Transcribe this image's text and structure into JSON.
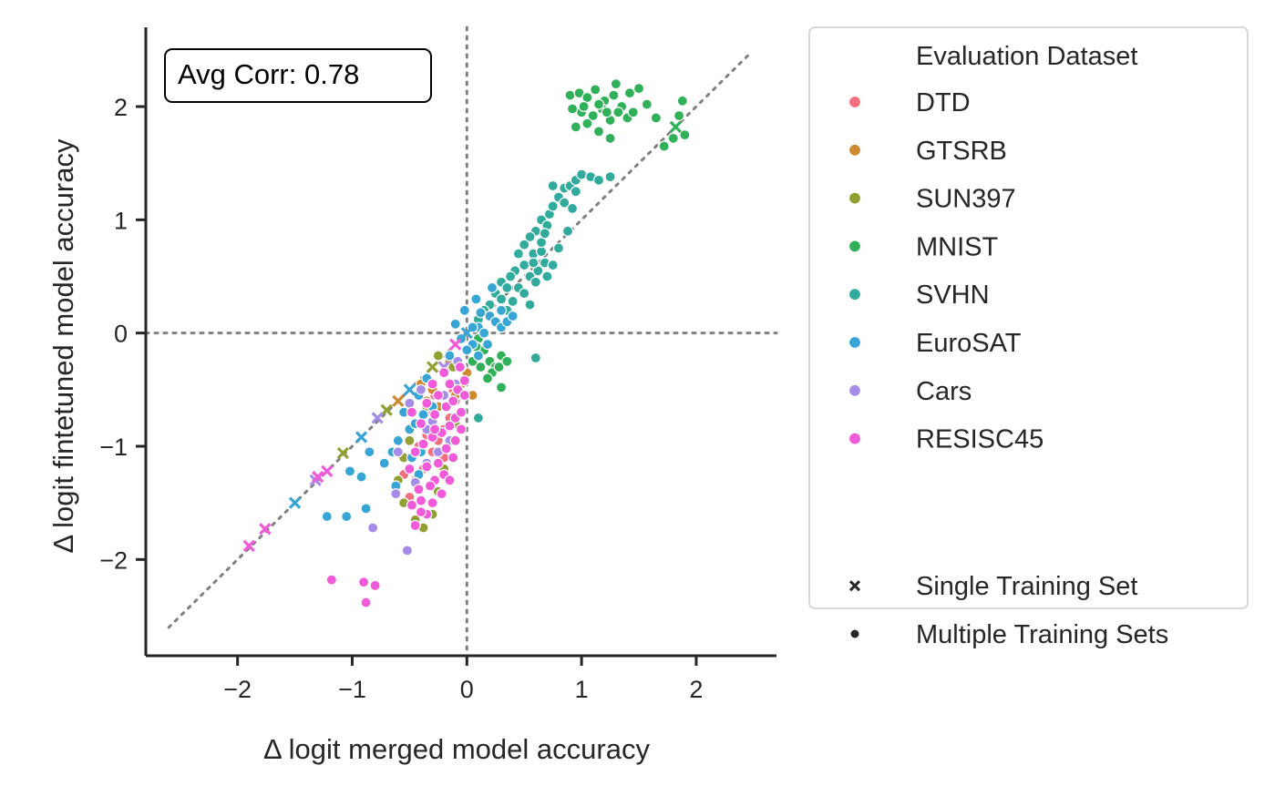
{
  "chart_data": {
    "type": "scatter",
    "xlabel": "Δ logit merged model accuracy",
    "ylabel": "Δ logit fintetuned model accuracy",
    "xlim": [
      -2.8,
      2.7
    ],
    "ylim": [
      -2.85,
      2.7
    ],
    "xticks": [
      -2,
      -1,
      0,
      1,
      2
    ],
    "yticks": [
      -2,
      -1,
      0,
      1,
      2
    ],
    "xtick_labels": [
      "−2",
      "−1",
      "0",
      "1",
      "2"
    ],
    "ytick_labels": [
      "−2",
      "−1",
      "0",
      "1",
      "2"
    ],
    "annotation": "Avg Corr: 0.78",
    "reference_lines": {
      "vertical_x": 0,
      "horizontal_y": 0,
      "diagonal": [
        [
          -2.6,
          -2.6
        ],
        [
          2.45,
          2.45
        ]
      ]
    },
    "legend": {
      "placement": "outside-right",
      "hue_title": "Evaluation Dataset",
      "style_title_spacer": "",
      "style_entries": [
        {
          "label": "Single Training Set",
          "marker": "x"
        },
        {
          "label": "Multiple Training Sets",
          "marker": "o"
        }
      ]
    },
    "series": [
      {
        "name": "DTD",
        "color": "#f0707f",
        "single": [
          [
            -0.15,
            -0.3
          ]
        ],
        "multiple": [
          [
            -0.45,
            -1.3
          ],
          [
            -0.38,
            -1.2
          ],
          [
            -0.3,
            -1.05
          ],
          [
            -0.25,
            -0.95
          ],
          [
            -0.2,
            -0.85
          ],
          [
            -0.35,
            -0.9
          ],
          [
            -0.15,
            -0.75
          ],
          [
            -0.1,
            -0.6
          ],
          [
            -0.3,
            -0.7
          ],
          [
            -0.42,
            -1.0
          ],
          [
            -0.55,
            -1.25
          ],
          [
            -0.5,
            -1.45
          ],
          [
            -0.2,
            -1.1
          ],
          [
            -0.12,
            -0.5
          ],
          [
            -0.28,
            -0.55
          ]
        ]
      },
      {
        "name": "GTSRB",
        "color": "#cd8a33",
        "single": [
          [
            -0.6,
            -0.6
          ]
        ],
        "multiple": [
          [
            -0.4,
            -0.45
          ],
          [
            -0.3,
            -0.5
          ],
          [
            -0.2,
            -0.35
          ],
          [
            -0.1,
            -0.55
          ],
          [
            -0.05,
            -0.45
          ],
          [
            0.05,
            -0.55
          ],
          [
            -0.25,
            -0.65
          ],
          [
            -0.35,
            -0.6
          ],
          [
            -0.15,
            -0.25
          ],
          [
            0.0,
            -0.35
          ]
        ]
      },
      {
        "name": "SUN397",
        "color": "#92a033",
        "single": [
          [
            -1.08,
            -1.06
          ],
          [
            -0.7,
            -0.68
          ],
          [
            -0.3,
            -0.3
          ]
        ],
        "multiple": [
          [
            -0.55,
            -1.5
          ],
          [
            -0.45,
            -1.65
          ],
          [
            -0.38,
            -1.72
          ],
          [
            -0.3,
            -1.6
          ],
          [
            -0.25,
            -1.4
          ],
          [
            -0.2,
            -1.2
          ],
          [
            -0.6,
            -1.3
          ],
          [
            -0.5,
            -0.95
          ],
          [
            -0.4,
            -0.8
          ],
          [
            -0.35,
            -0.65
          ],
          [
            -0.15,
            -0.95
          ],
          [
            -0.1,
            -0.8
          ],
          [
            -0.55,
            -1.1
          ],
          [
            -0.12,
            -0.3
          ],
          [
            -0.25,
            -0.2
          ]
        ]
      },
      {
        "name": "MNIST",
        "color": "#31b05a",
        "single": [
          [
            1.82,
            1.82
          ]
        ],
        "multiple": [
          [
            0.9,
            2.1
          ],
          [
            0.98,
            2.12
          ],
          [
            1.05,
            2.08
          ],
          [
            1.12,
            2.15
          ],
          [
            1.2,
            2.05
          ],
          [
            1.28,
            2.1
          ],
          [
            1.35,
            2.0
          ],
          [
            1.42,
            2.12
          ],
          [
            1.5,
            2.16
          ],
          [
            1.57,
            2.02
          ],
          [
            1.0,
            1.95
          ],
          [
            1.1,
            1.92
          ],
          [
            1.18,
            1.98
          ],
          [
            1.25,
            1.88
          ],
          [
            1.32,
            1.95
          ],
          [
            1.4,
            1.9
          ],
          [
            0.95,
            1.82
          ],
          [
            1.05,
            1.85
          ],
          [
            1.15,
            1.78
          ],
          [
            1.25,
            1.72
          ],
          [
            1.65,
            1.9
          ],
          [
            1.72,
            1.65
          ],
          [
            1.8,
            1.72
          ],
          [
            1.85,
            1.92
          ],
          [
            1.88,
            2.05
          ],
          [
            1.9,
            1.75
          ],
          [
            1.45,
            1.95
          ],
          [
            1.3,
            2.2
          ],
          [
            1.02,
            2.0
          ],
          [
            1.22,
            1.95
          ],
          [
            0.92,
            1.98
          ],
          [
            1.15,
            2.02
          ],
          [
            0.1,
            -0.05
          ],
          [
            0.15,
            -0.15
          ],
          [
            0.2,
            -0.25
          ],
          [
            0.25,
            -0.3
          ],
          [
            0.3,
            -0.2
          ],
          [
            0.12,
            -0.3
          ],
          [
            0.22,
            -0.35
          ],
          [
            0.3,
            -0.48
          ],
          [
            0.18,
            -0.4
          ],
          [
            0.28,
            -0.3
          ],
          [
            0.05,
            -0.25
          ],
          [
            0.35,
            -0.25
          ],
          [
            0.08,
            -0.12
          ]
        ]
      },
      {
        "name": "SVHN",
        "color": "#31ab9c",
        "single": [],
        "multiple": [
          [
            0.65,
            1.0
          ],
          [
            0.72,
            1.05
          ],
          [
            0.8,
            1.2
          ],
          [
            0.85,
            1.28
          ],
          [
            0.9,
            1.3
          ],
          [
            0.95,
            1.35
          ],
          [
            1.0,
            1.4
          ],
          [
            1.08,
            1.38
          ],
          [
            1.15,
            1.35
          ],
          [
            0.75,
            1.12
          ],
          [
            0.7,
            0.95
          ],
          [
            0.6,
            0.9
          ],
          [
            0.55,
            0.85
          ],
          [
            0.5,
            0.78
          ],
          [
            0.58,
            0.7
          ],
          [
            0.65,
            0.72
          ],
          [
            0.45,
            0.7
          ],
          [
            0.5,
            0.6
          ],
          [
            0.42,
            0.55
          ],
          [
            0.38,
            0.5
          ],
          [
            0.3,
            0.45
          ],
          [
            0.35,
            0.4
          ],
          [
            0.25,
            0.35
          ],
          [
            0.3,
            0.3
          ],
          [
            0.2,
            0.25
          ],
          [
            0.15,
            0.2
          ],
          [
            0.1,
            0.12
          ],
          [
            0.45,
            0.4
          ],
          [
            0.55,
            0.5
          ],
          [
            0.62,
            0.55
          ],
          [
            0.68,
            0.62
          ],
          [
            0.5,
            0.35
          ],
          [
            0.6,
            0.45
          ],
          [
            0.7,
            0.5
          ],
          [
            0.75,
            0.6
          ],
          [
            0.65,
            0.8
          ],
          [
            0.8,
            0.75
          ],
          [
            0.88,
            0.9
          ],
          [
            0.92,
            1.1
          ],
          [
            1.25,
            1.38
          ],
          [
            0.6,
            -0.22
          ],
          [
            0.1,
            -0.75
          ],
          [
            0.55,
            0.25
          ],
          [
            0.4,
            0.28
          ],
          [
            0.35,
            0.2
          ],
          [
            0.75,
            1.3
          ],
          [
            0.85,
            1.15
          ],
          [
            0.95,
            1.25
          ],
          [
            0.68,
            0.88
          ],
          [
            0.58,
            0.62
          ]
        ]
      },
      {
        "name": "EuroSAT",
        "color": "#38a6d4",
        "single": [
          [
            -1.5,
            -1.5
          ],
          [
            -0.92,
            -0.92
          ],
          [
            -0.5,
            -0.5
          ],
          [
            0.0,
            0.0
          ]
        ],
        "multiple": [
          [
            -1.22,
            -1.62
          ],
          [
            -1.05,
            -1.62
          ],
          [
            -0.88,
            -1.55
          ],
          [
            -0.92,
            -1.27
          ],
          [
            -0.72,
            -1.15
          ],
          [
            -0.65,
            -1.05
          ],
          [
            -0.6,
            -0.95
          ],
          [
            -0.5,
            -0.85
          ],
          [
            -0.45,
            -0.8
          ],
          [
            -0.38,
            -0.72
          ],
          [
            -0.3,
            -0.65
          ],
          [
            -0.22,
            -0.55
          ],
          [
            -0.12,
            -0.45
          ],
          [
            -0.05,
            -0.3
          ],
          [
            0.05,
            -0.1
          ],
          [
            0.1,
            0.05
          ],
          [
            0.2,
            0.15
          ],
          [
            0.3,
            0.2
          ],
          [
            0.25,
            0.1
          ],
          [
            0.15,
            0.0
          ],
          [
            0.0,
            -0.15
          ],
          [
            -0.08,
            -0.25
          ],
          [
            0.18,
            -0.1
          ],
          [
            0.1,
            -0.2
          ],
          [
            -0.15,
            -0.2
          ],
          [
            0.3,
            0.05
          ],
          [
            0.35,
            0.1
          ],
          [
            0.22,
            0.4
          ],
          [
            0.08,
            0.3
          ],
          [
            -0.1,
            0.08
          ],
          [
            -0.02,
            0.2
          ],
          [
            -0.35,
            -0.4
          ],
          [
            -0.42,
            -0.55
          ],
          [
            -0.55,
            -0.7
          ],
          [
            -0.48,
            -1.1
          ],
          [
            -0.42,
            -1.25
          ],
          [
            -1.02,
            -1.22
          ],
          [
            -0.85,
            -1.05
          ],
          [
            -0.62,
            -1.35
          ],
          [
            -0.4,
            -1.05
          ],
          [
            -0.3,
            -0.9
          ],
          [
            0.4,
            0.15
          ],
          [
            0.05,
            0.05
          ],
          [
            0.12,
            0.18
          ],
          [
            -0.05,
            -0.05
          ]
        ]
      },
      {
        "name": "Cars",
        "color": "#a48ce8",
        "single": [
          [
            -1.32,
            -1.3
          ],
          [
            -0.78,
            -0.75
          ],
          [
            -0.2,
            -0.3
          ]
        ],
        "multiple": [
          [
            -0.82,
            -1.72
          ],
          [
            -0.52,
            -1.92
          ],
          [
            -0.62,
            -1.42
          ],
          [
            -0.45,
            -1.32
          ],
          [
            -0.35,
            -1.15
          ],
          [
            -0.25,
            -1.05
          ],
          [
            -0.15,
            -0.95
          ],
          [
            -0.3,
            -0.78
          ],
          [
            -0.2,
            -0.55
          ],
          [
            -0.1,
            -0.45
          ],
          [
            -0.08,
            -0.25
          ],
          [
            -0.4,
            -0.5
          ],
          [
            -0.5,
            -0.62
          ],
          [
            -0.35,
            -0.85
          ],
          [
            -0.6,
            -1.05
          ]
        ]
      },
      {
        "name": "RESISC45",
        "color": "#f15ad8",
        "single": [
          [
            -1.9,
            -1.88
          ],
          [
            -1.76,
            -1.73
          ],
          [
            -1.3,
            -1.27
          ],
          [
            -1.22,
            -1.22
          ],
          [
            -0.1,
            -0.1
          ]
        ],
        "multiple": [
          [
            -1.18,
            -2.18
          ],
          [
            -0.9,
            -2.2
          ],
          [
            -0.8,
            -2.23
          ],
          [
            -0.88,
            -2.38
          ],
          [
            -0.48,
            -1.52
          ],
          [
            -0.4,
            -1.48
          ],
          [
            -0.35,
            -1.6
          ],
          [
            -0.3,
            -1.5
          ],
          [
            -0.42,
            -1.38
          ],
          [
            -0.28,
            -1.3
          ],
          [
            -0.2,
            -1.25
          ],
          [
            -0.35,
            -1.18
          ],
          [
            -0.5,
            -1.2
          ],
          [
            -0.45,
            -1.05
          ],
          [
            -0.38,
            -0.98
          ],
          [
            -0.3,
            -0.92
          ],
          [
            -0.22,
            -0.88
          ],
          [
            -0.15,
            -0.82
          ],
          [
            -0.1,
            -0.75
          ],
          [
            -0.05,
            -0.7
          ],
          [
            -0.18,
            -0.65
          ],
          [
            -0.28,
            -0.72
          ],
          [
            -0.4,
            -0.8
          ],
          [
            -0.48,
            -0.7
          ],
          [
            -0.35,
            -0.62
          ],
          [
            -0.25,
            -0.55
          ],
          [
            -0.12,
            -0.6
          ],
          [
            -0.08,
            -0.5
          ],
          [
            -0.02,
            -0.55
          ],
          [
            -0.15,
            -0.45
          ],
          [
            -0.3,
            -0.45
          ],
          [
            -0.2,
            -0.35
          ],
          [
            -0.1,
            -0.95
          ],
          [
            -0.05,
            -0.85
          ],
          [
            -0.18,
            -1.02
          ],
          [
            -0.12,
            -1.1
          ],
          [
            -0.25,
            -1.15
          ],
          [
            -0.32,
            -1.35
          ],
          [
            -0.15,
            -1.3
          ],
          [
            -0.22,
            -1.42
          ],
          [
            -0.4,
            -1.58
          ],
          [
            -0.45,
            -1.7
          ],
          [
            -0.28,
            -0.85
          ],
          [
            -0.02,
            -0.42
          ],
          [
            -0.06,
            -0.3
          ]
        ]
      }
    ]
  }
}
